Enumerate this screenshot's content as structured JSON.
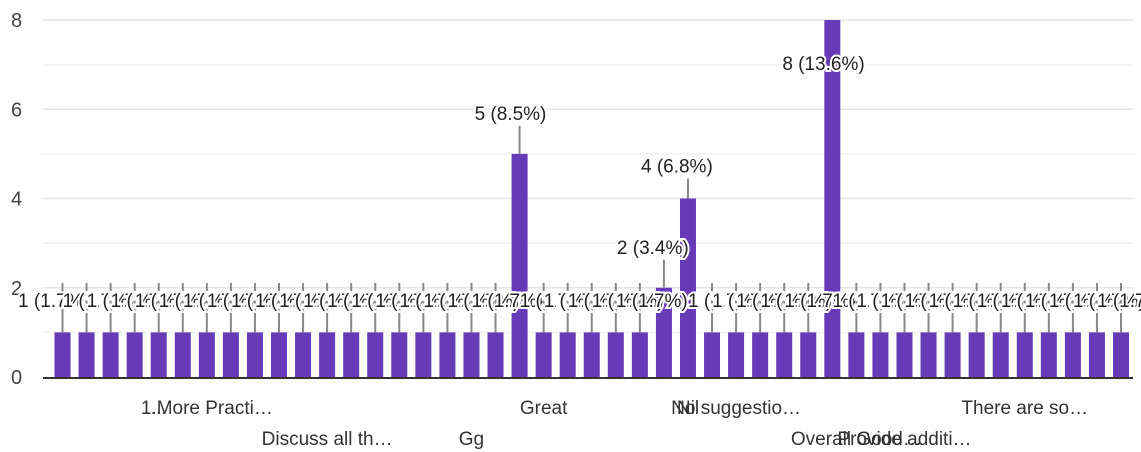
{
  "chart_data": {
    "type": "bar",
    "title": "",
    "xlabel": "",
    "ylabel": "",
    "ylim": [
      0,
      8
    ],
    "yticks": [
      0,
      2,
      4,
      6,
      8
    ],
    "grid": true,
    "bar_color": "#673ab7",
    "categories": [
      "",
      "",
      "",
      "",
      "...",
      "",
      "1.More Practi…",
      "",
      "",
      "",
      "",
      "Discuss all th…",
      "",
      "",
      "",
      "",
      "",
      "Gg",
      "",
      "",
      "Great",
      "",
      "",
      "",
      "",
      "",
      "Nil",
      "",
      "No suggestio…",
      "",
      "",
      "",
      "",
      "Overall Good…",
      "",
      "Provide additi…",
      "",
      "",
      "",
      "",
      "There are so…",
      "",
      "",
      "",
      ""
    ],
    "values": [
      1,
      1,
      1,
      1,
      1,
      1,
      1,
      1,
      1,
      1,
      1,
      1,
      1,
      1,
      1,
      1,
      1,
      1,
      1,
      5,
      1,
      1,
      1,
      1,
      1,
      2,
      4,
      1,
      1,
      1,
      1,
      1,
      8,
      1,
      1,
      1,
      1,
      1,
      1,
      1,
      1,
      1,
      1,
      1,
      1
    ],
    "data_labels": {
      "19": "5 (8.5%)",
      "25": "2 (3.4%)",
      "26": "4 (6.8%)",
      "32": "8 (13.6%)"
    },
    "small_label": "1 (1.7%)"
  }
}
